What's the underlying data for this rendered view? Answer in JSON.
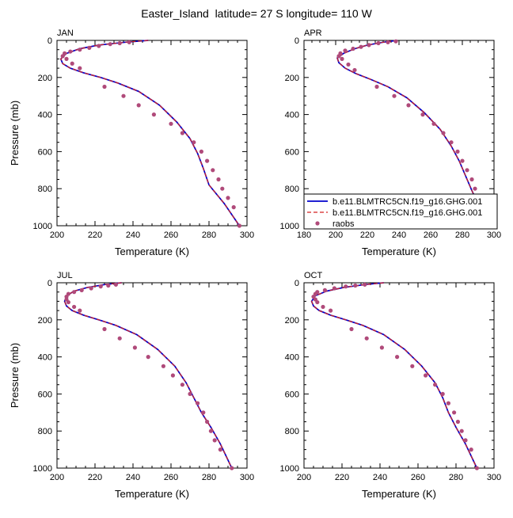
{
  "figure_title": "Easter_Island  latitude= 27 S longitude= 110 W",
  "colors": {
    "model1": "#0000cc",
    "model2": "#d42020",
    "raobs": "#b04a7a"
  },
  "legend": {
    "entries": [
      "b.e11.BLMTRC5CN.f19_g16.GHG.001",
      "b.e11.BLMTRC5CN.f19_g16.GHG.001",
      "raobs"
    ]
  },
  "chart_data": [
    {
      "type": "line",
      "panel": "JAN",
      "title": "JAN",
      "xlabel": "Temperature (K)",
      "ylabel": "Pressure (mb)",
      "xlim": [
        200,
        300
      ],
      "ylim": [
        1000,
        0
      ],
      "xticks": [
        200,
        220,
        240,
        260,
        280,
        300
      ],
      "yticks": [
        0,
        200,
        400,
        600,
        800,
        1000
      ],
      "series": [
        {
          "style": "line-solid",
          "color": "#0000cc",
          "x": [
            248,
            236,
            222,
            212,
            205,
            202,
            203,
            207,
            214,
            223,
            232,
            243,
            254,
            263,
            270,
            274,
            277,
            280,
            288,
            296
          ],
          "y": [
            0,
            10,
            25,
            45,
            70,
            100,
            125,
            150,
            175,
            200,
            230,
            275,
            350,
            440,
            530,
            610,
            690,
            780,
            880,
            1000
          ]
        },
        {
          "style": "line-dashed",
          "color": "#d42020",
          "x": [
            248,
            236,
            222,
            212,
            205,
            202,
            203,
            207,
            214,
            223,
            232,
            243,
            254,
            263,
            270,
            274,
            277,
            280,
            288,
            296
          ],
          "y": [
            0,
            10,
            25,
            45,
            70,
            100,
            125,
            150,
            175,
            200,
            230,
            275,
            350,
            440,
            530,
            610,
            690,
            780,
            880,
            1000
          ]
        },
        {
          "name": "raobs",
          "style": "markers",
          "color": "#b04a7a",
          "x": [
            238,
            233,
            228,
            222,
            217,
            212,
            207,
            204,
            203,
            205,
            208,
            212,
            225,
            235,
            243,
            251,
            260,
            266,
            272,
            276,
            279,
            282,
            285,
            287,
            290,
            293,
            296
          ],
          "y": [
            10,
            15,
            20,
            30,
            40,
            50,
            60,
            70,
            85,
            100,
            125,
            150,
            250,
            300,
            350,
            400,
            450,
            500,
            550,
            600,
            650,
            700,
            750,
            800,
            850,
            900,
            1000
          ]
        }
      ]
    },
    {
      "type": "line",
      "panel": "APR",
      "title": "APR",
      "xlabel": "Temperature (K)",
      "ylabel": "",
      "xlim": [
        180,
        300
      ],
      "ylim": [
        1000,
        0
      ],
      "xticks": [
        180,
        200,
        220,
        240,
        260,
        280,
        300
      ],
      "yticks": [
        0,
        200,
        400,
        600,
        800,
        1000
      ],
      "series": [
        {
          "style": "line-solid",
          "color": "#0000cc",
          "x": [
            239,
            230,
            220,
            212,
            205,
            201,
            202,
            206,
            213,
            222,
            233,
            245,
            256,
            266,
            273,
            278,
            282,
            286,
            291,
            296
          ],
          "y": [
            0,
            10,
            25,
            45,
            70,
            95,
            120,
            150,
            180,
            210,
            250,
            310,
            390,
            480,
            570,
            650,
            730,
            810,
            900,
            1000
          ]
        },
        {
          "style": "line-dashed",
          "color": "#d42020",
          "x": [
            239,
            230,
            220,
            212,
            205,
            201,
            202,
            206,
            213,
            222,
            233,
            245,
            256,
            266,
            273,
            278,
            282,
            286,
            291,
            296
          ],
          "y": [
            0,
            10,
            25,
            45,
            70,
            95,
            120,
            150,
            180,
            210,
            250,
            310,
            390,
            480,
            570,
            650,
            730,
            810,
            900,
            1000
          ]
        },
        {
          "name": "raobs",
          "style": "markers",
          "color": "#b04a7a",
          "x": [
            238,
            233,
            227,
            221,
            216,
            211,
            206,
            203,
            202,
            204,
            208,
            212,
            226,
            237,
            246,
            255,
            262,
            268,
            273,
            277,
            280,
            283,
            286,
            288,
            291,
            295
          ],
          "y": [
            5,
            10,
            15,
            25,
            35,
            45,
            55,
            70,
            85,
            100,
            130,
            160,
            250,
            300,
            350,
            400,
            450,
            500,
            550,
            600,
            650,
            700,
            750,
            800,
            850,
            1000
          ]
        }
      ]
    },
    {
      "type": "line",
      "panel": "JUL",
      "title": "JUL",
      "xlabel": "Temperature (K)",
      "ylabel": "Pressure (mb)",
      "xlim": [
        200,
        300
      ],
      "ylim": [
        1000,
        0
      ],
      "xticks": [
        200,
        220,
        240,
        260,
        280,
        300
      ],
      "yticks": [
        0,
        200,
        400,
        600,
        800,
        1000
      ],
      "series": [
        {
          "style": "line-solid",
          "color": "#0000cc",
          "x": [
            234,
            225,
            216,
            209,
            205,
            204,
            205,
            208,
            214,
            222,
            231,
            242,
            253,
            262,
            268,
            272,
            276,
            281,
            286,
            292
          ],
          "y": [
            0,
            10,
            25,
            45,
            70,
            100,
            125,
            150,
            175,
            200,
            230,
            280,
            360,
            450,
            540,
            620,
            700,
            780,
            870,
            1000
          ]
        },
        {
          "style": "line-dashed",
          "color": "#d42020",
          "x": [
            234,
            225,
            216,
            209,
            205,
            204,
            205,
            208,
            214,
            222,
            231,
            242,
            253,
            262,
            268,
            272,
            276,
            281,
            286,
            292
          ],
          "y": [
            0,
            10,
            25,
            45,
            70,
            100,
            125,
            150,
            175,
            200,
            230,
            280,
            360,
            450,
            540,
            620,
            700,
            780,
            870,
            1000
          ]
        },
        {
          "name": "raobs",
          "style": "markers",
          "color": "#b04a7a",
          "x": [
            231,
            227,
            223,
            218,
            213,
            209,
            206,
            205,
            205,
            206,
            209,
            212,
            225,
            233,
            241,
            248,
            256,
            261,
            266,
            270,
            274,
            277,
            279,
            281,
            283,
            286,
            292
          ],
          "y": [
            10,
            15,
            20,
            30,
            40,
            50,
            60,
            75,
            90,
            105,
            130,
            150,
            250,
            300,
            350,
            400,
            450,
            500,
            550,
            600,
            650,
            700,
            750,
            800,
            850,
            900,
            1000
          ]
        }
      ]
    },
    {
      "type": "line",
      "panel": "OCT",
      "title": "OCT",
      "xlabel": "Temperature (K)",
      "ylabel": "",
      "xlim": [
        200,
        300
      ],
      "ylim": [
        1000,
        0
      ],
      "xticks": [
        200,
        220,
        240,
        260,
        280,
        300
      ],
      "yticks": [
        0,
        200,
        400,
        600,
        800,
        1000
      ],
      "series": [
        {
          "style": "line-solid",
          "color": "#0000cc",
          "x": [
            242,
            232,
            221,
            212,
            206,
            204,
            205,
            208,
            214,
            222,
            231,
            242,
            253,
            262,
            269,
            273,
            276,
            280,
            285,
            291
          ],
          "y": [
            0,
            10,
            25,
            45,
            70,
            100,
            125,
            150,
            175,
            200,
            230,
            280,
            360,
            450,
            540,
            620,
            700,
            780,
            870,
            1000
          ]
        },
        {
          "style": "line-dashed",
          "color": "#d42020",
          "x": [
            242,
            232,
            221,
            212,
            206,
            204,
            205,
            208,
            214,
            222,
            231,
            242,
            253,
            262,
            269,
            273,
            276,
            280,
            285,
            291
          ],
          "y": [
            0,
            10,
            25,
            45,
            70,
            100,
            125,
            150,
            175,
            200,
            230,
            280,
            360,
            450,
            540,
            620,
            700,
            780,
            870,
            1000
          ]
        },
        {
          "name": "raobs",
          "style": "markers",
          "color": "#b04a7a",
          "x": [
            232,
            227,
            222,
            216,
            211,
            207,
            206,
            205,
            206,
            207,
            210,
            214,
            225,
            233,
            241,
            249,
            257,
            264,
            269,
            273,
            276,
            279,
            281,
            283,
            285,
            288,
            291
          ],
          "y": [
            10,
            15,
            20,
            30,
            40,
            50,
            60,
            75,
            90,
            105,
            130,
            150,
            250,
            300,
            350,
            400,
            450,
            500,
            550,
            600,
            650,
            700,
            750,
            800,
            850,
            900,
            1000
          ]
        }
      ]
    }
  ]
}
